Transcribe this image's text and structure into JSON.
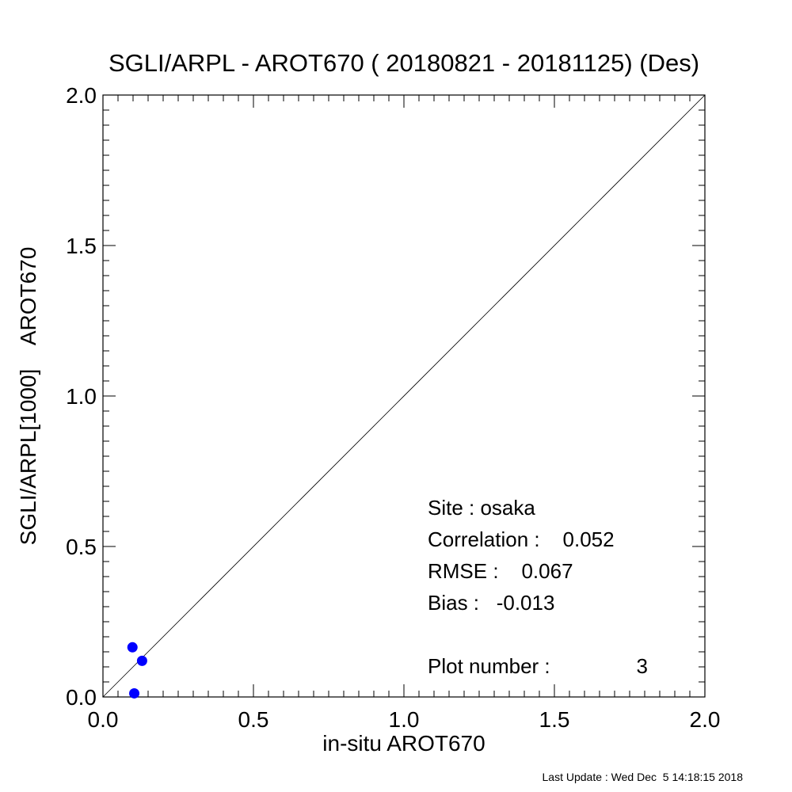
{
  "chart_data": {
    "type": "scatter",
    "title": "SGLI/ARPL - AROT670 ( 20180821 - 20181125) (Des)",
    "xlabel": "in-situ AROT670",
    "ylabel": "SGLI/ARPL[1000]    AROT670",
    "xlim": [
      0.0,
      2.0
    ],
    "ylim": [
      0.0,
      2.0
    ],
    "x_ticks": [
      "0.0",
      "0.5",
      "1.0",
      "1.5",
      "2.0"
    ],
    "y_ticks": [
      "0.0",
      "0.5",
      "1.0",
      "1.5",
      "2.0"
    ],
    "reference_line": "1:1",
    "grid": false,
    "point_color": "#0000ff",
    "series": [
      {
        "points": [
          {
            "x": 0.098,
            "y": 0.165
          },
          {
            "x": 0.13,
            "y": 0.12
          },
          {
            "x": 0.104,
            "y": 0.012
          }
        ]
      }
    ],
    "annotations": {
      "site": "Site : osaka",
      "correlation": "Correlation :    0.052",
      "rmse": "RMSE :    0.067",
      "bias": "Bias :   -0.013",
      "plot_number": "Plot number :",
      "plot_number_value": "3"
    }
  },
  "footer": "Last Update : Wed Dec  5 14:18:15 2018"
}
